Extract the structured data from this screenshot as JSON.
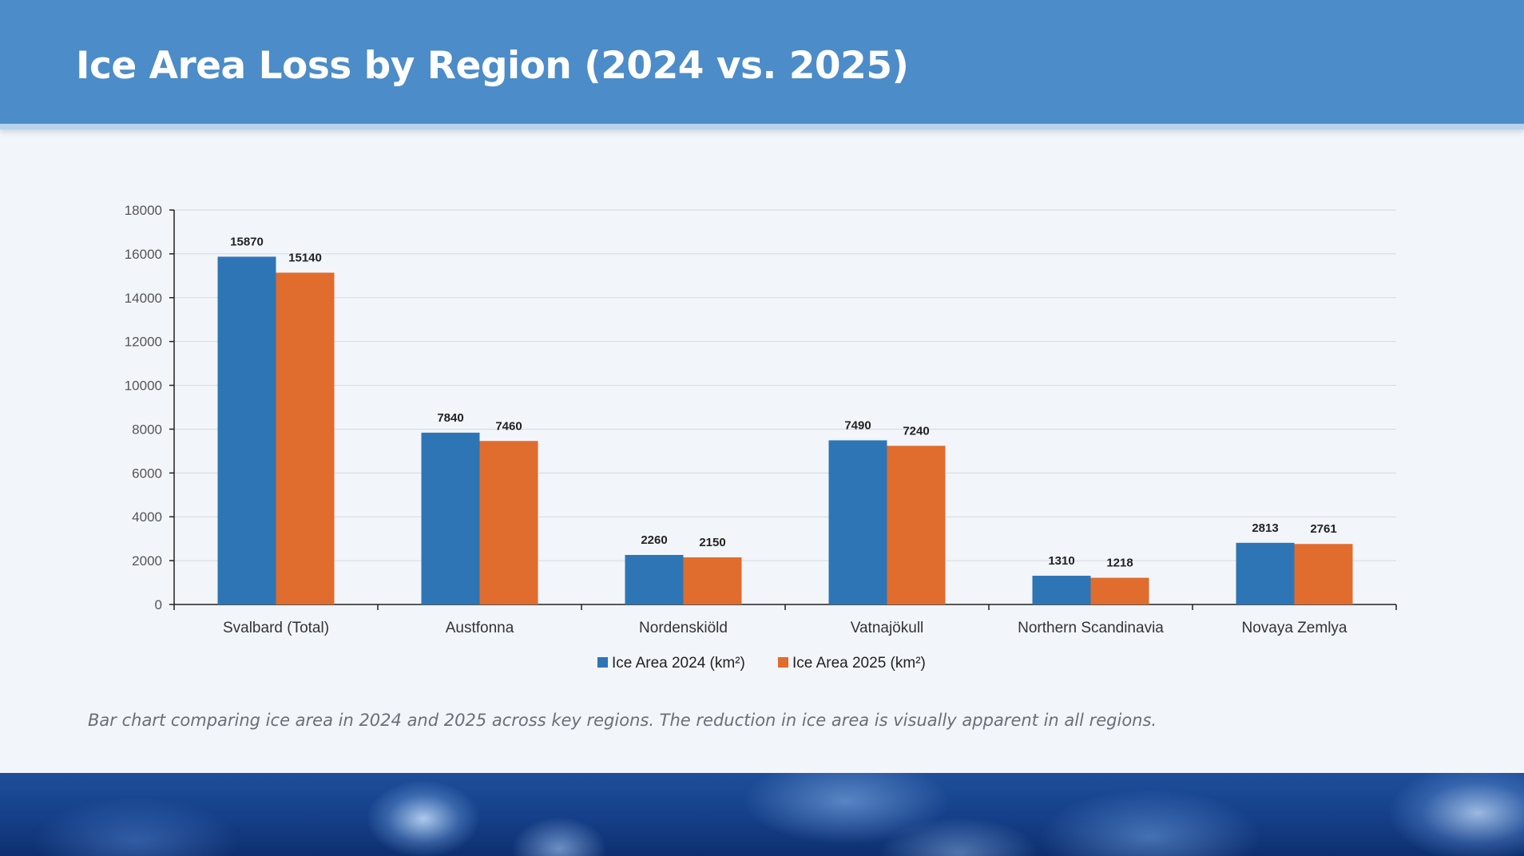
{
  "header": {
    "title": "Ice Area Loss by Region (2024 vs. 2025)"
  },
  "caption": "Bar chart comparing ice area in 2024 and 2025 across key regions. The reduction in ice area is visually apparent in all regions.",
  "colors": {
    "series_2024": "#2e75b6",
    "series_2025": "#e06c2e",
    "header": "#4c8cc8"
  },
  "chart_data": {
    "type": "bar",
    "title": "",
    "xlabel": "",
    "ylabel": "",
    "ylim": [
      0,
      18000
    ],
    "yticks": [
      0,
      2000,
      4000,
      6000,
      8000,
      10000,
      12000,
      14000,
      16000,
      18000
    ],
    "grid": true,
    "legend_position": "bottom",
    "categories": [
      "Svalbard (Total)",
      "Austfonna",
      "Nordenskiöld",
      "Vatnajökull",
      "Northern Scandinavia",
      "Novaya Zemlya"
    ],
    "series": [
      {
        "name": "Ice Area 2024 (km²)",
        "color": "#2e75b6",
        "values": [
          15870,
          7840,
          2260,
          7490,
          1310,
          2813
        ]
      },
      {
        "name": "Ice Area 2025 (km²)",
        "color": "#e06c2e",
        "values": [
          15140,
          7460,
          2150,
          7240,
          1218,
          2761
        ]
      }
    ]
  }
}
